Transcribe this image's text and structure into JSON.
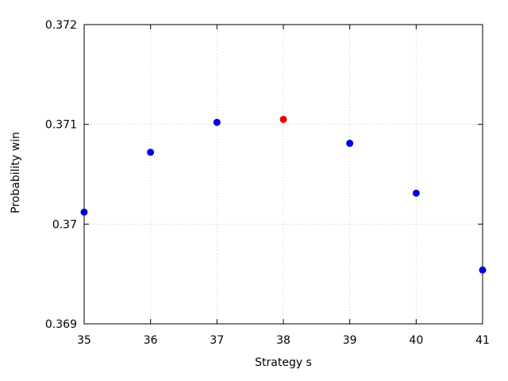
{
  "chart_data": {
    "type": "scatter",
    "xlabel": "Strategy s",
    "ylabel": "Probability win",
    "xlim": [
      35,
      41
    ],
    "ylim": [
      0.369,
      0.372
    ],
    "x_ticks": [
      "35",
      "36",
      "37",
      "38",
      "39",
      "40",
      "41"
    ],
    "y_ticks": [
      "0.369",
      "0.37",
      "0.371",
      "0.372"
    ],
    "grid": true,
    "series": [
      {
        "color": "#0000dd",
        "points": [
          {
            "x": 35,
            "y": 0.37012
          },
          {
            "x": 36,
            "y": 0.37072
          },
          {
            "x": 37,
            "y": 0.37102
          },
          {
            "x": 39,
            "y": 0.37081
          },
          {
            "x": 40,
            "y": 0.37031
          },
          {
            "x": 41,
            "y": 0.36954
          }
        ]
      },
      {
        "color": "#ee0000",
        "points": [
          {
            "x": 38,
            "y": 0.37105
          }
        ]
      }
    ]
  }
}
